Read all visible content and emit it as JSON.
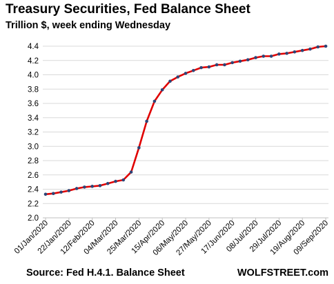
{
  "header": {
    "title": "Treasury Securities, Fed Balance Sheet",
    "subtitle": "Trillion $, week ending Wednesday"
  },
  "footer": {
    "source": "Source: Fed H.4.1. Balance Sheet",
    "brand": "WOLFSTREET.com"
  },
  "colors": {
    "line": "#e00000",
    "marker": "#2e4577",
    "grid": "#d9d9d9",
    "axis": "#bfbfbf"
  },
  "chart_data": {
    "type": "line",
    "title": "Treasury Securities, Fed Balance Sheet",
    "subtitle": "Trillion $, week ending Wednesday",
    "ylim": [
      2.0,
      4.4
    ],
    "y_ticks": [
      "2.0",
      "2.2",
      "2.4",
      "2.6",
      "2.8",
      "3.0",
      "3.2",
      "3.4",
      "3.6",
      "3.8",
      "4.0",
      "4.2",
      "4.4"
    ],
    "x_tick_labels": [
      "01/Jan/2020",
      "22/Jan/2020",
      "12/Feb/2020",
      "04/Mar/2020",
      "25/Mar/2020",
      "15/Apr/2020",
      "06/May/2020",
      "27/May/2020",
      "17/Jun/2020",
      "08/Jul/2020",
      "29/Jul/2020",
      "19/Aug/2020",
      "09/Sep/2020"
    ],
    "grid": true,
    "legend": "none",
    "series": [
      {
        "values": [
          2.33,
          2.34,
          2.36,
          2.38,
          2.41,
          2.43,
          2.44,
          2.45,
          2.48,
          2.51,
          2.53,
          2.64,
          2.98,
          3.35,
          3.63,
          3.79,
          3.91,
          3.97,
          4.02,
          4.06,
          4.1,
          4.11,
          4.14,
          4.14,
          4.17,
          4.19,
          4.21,
          4.24,
          4.26,
          4.26,
          4.29,
          4.3,
          4.32,
          4.34,
          4.36,
          4.39,
          4.4
        ]
      }
    ]
  }
}
